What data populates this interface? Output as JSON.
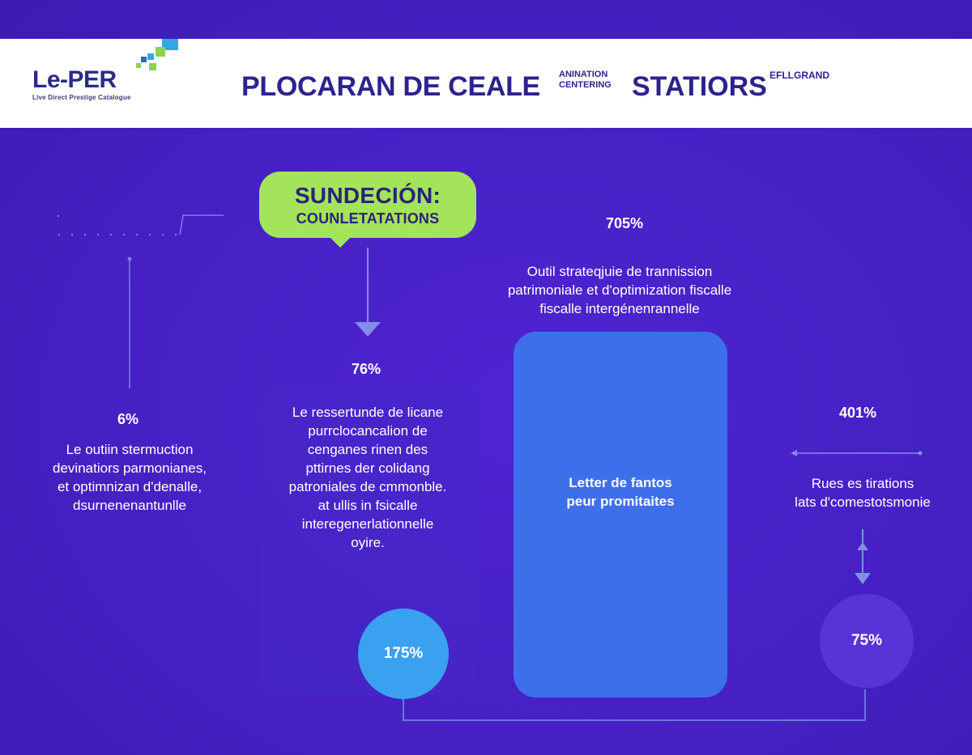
{
  "header": {
    "logo_text": "Le-PER",
    "logo_sub": "Live Direct Prestige Catalogue",
    "title": "PLOCARAN DE CEALE",
    "mini_line1": "ANINATION",
    "mini_line2": "CENTERING",
    "title2": "STATIORS",
    "sup": "EFLLGRAND"
  },
  "bubble": {
    "title": "SUNDECIÓN:",
    "subtitle": "COUNLETATATIONS"
  },
  "stats": {
    "left_value": "6%",
    "left_text": "Le outiin stermuction\ndevinatiors parmonianes,\net optimnizan d'denalle,\ndsurnenenantunlle",
    "center_value": "76%",
    "center_text": "Le ressertunde de licane\npurrclocancalion de\ncenganes rinen des\npttirnes der colidang\npatroniales de cmmonble.\nat ullis in fsicalle\ninteregenerlationnelle\noyire.",
    "top_value": "705%",
    "top_text": "Outil strateqjuie de trannission\npatrimoniale et d'optimization fiscalle\nfiscalle intergénenrannelle",
    "blue_card_text": "Letter de fantos\npeur promitaites",
    "right_value": "401%",
    "right_text": "Rues es tirations\nlats d'comestotsmonie"
  },
  "circles": {
    "blue": "175%",
    "purple": "75%"
  },
  "colors": {
    "background": "#4a22c8",
    "bubble": "#a3e45a",
    "blue_card": "#3d6fea",
    "circle_blue": "#3aa0f0",
    "circle_purple": "#5a33d8",
    "title_text": "#2c238d"
  }
}
